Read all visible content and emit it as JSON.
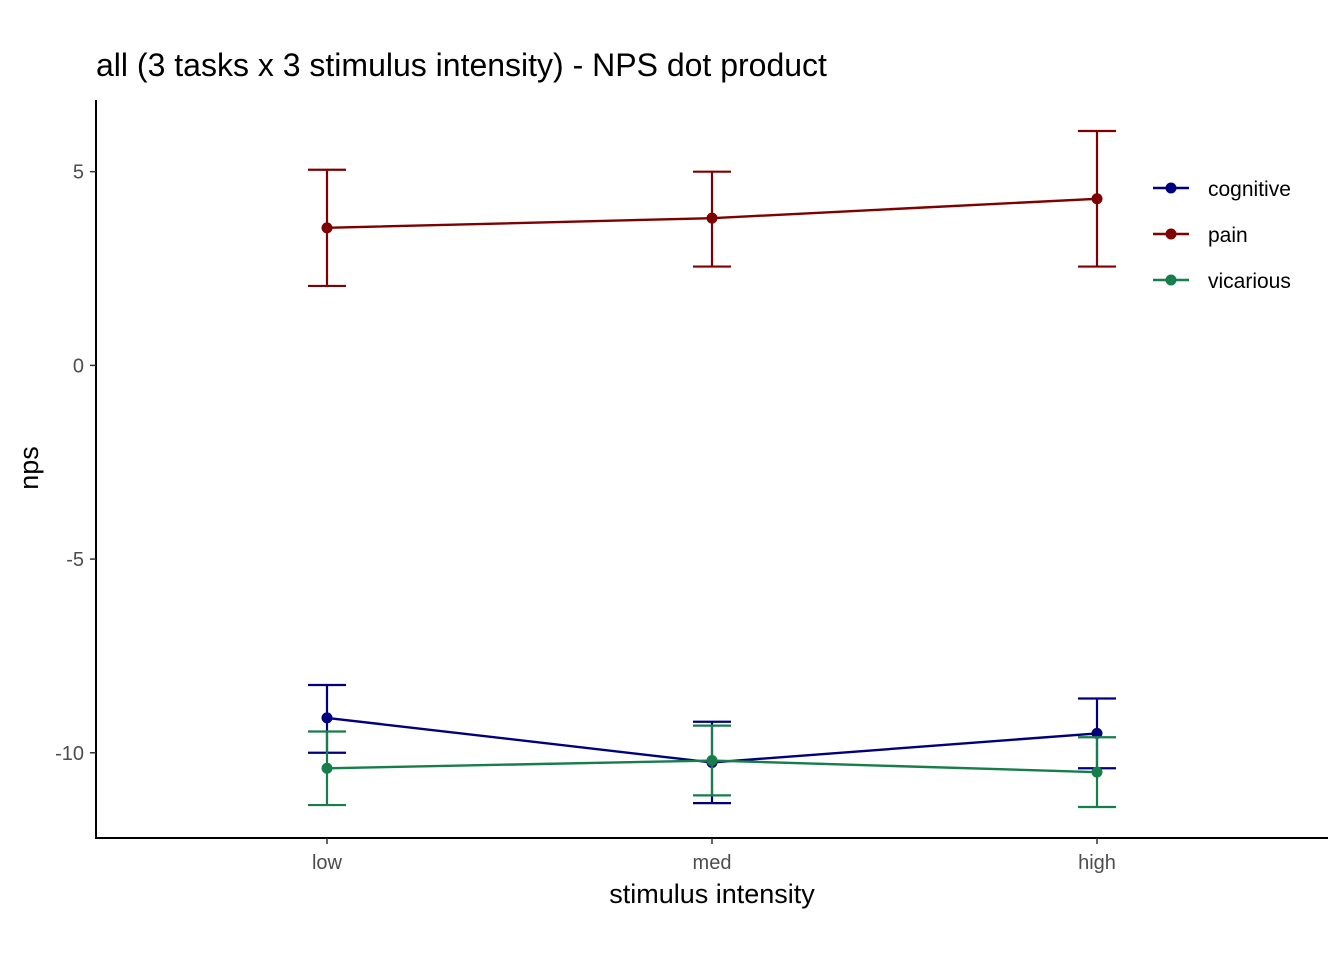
{
  "chart_data": {
    "type": "line",
    "title": "all  (3 tasks x 3 stimulus intensity) - NPS dot product",
    "xlabel": "stimulus intensity",
    "ylabel": "nps",
    "categories": [
      "low",
      "med",
      "high"
    ],
    "yticks": [
      5,
      0,
      -5,
      -10
    ],
    "ylim": [
      -12.2,
      6.85
    ],
    "grid": false,
    "legend_position": "right",
    "error_bars": true,
    "series": [
      {
        "name": "cognitive",
        "color": "#00007F",
        "values": [
          -9.1,
          -10.25,
          -9.5
        ],
        "lower": [
          -10.0,
          -11.3,
          -10.4
        ],
        "upper": [
          -8.25,
          -9.2,
          -8.6
        ]
      },
      {
        "name": "pain",
        "color": "#7F0000",
        "values": [
          3.55,
          3.8,
          4.3
        ],
        "lower": [
          2.05,
          2.55,
          2.55
        ],
        "upper": [
          5.05,
          5.0,
          6.05
        ]
      },
      {
        "name": "vicarious",
        "color": "#177D4A",
        "values": [
          -10.4,
          -10.2,
          -10.5
        ],
        "lower": [
          -11.35,
          -11.1,
          -11.4
        ],
        "upper": [
          -9.45,
          -9.3,
          -9.6
        ]
      }
    ]
  }
}
